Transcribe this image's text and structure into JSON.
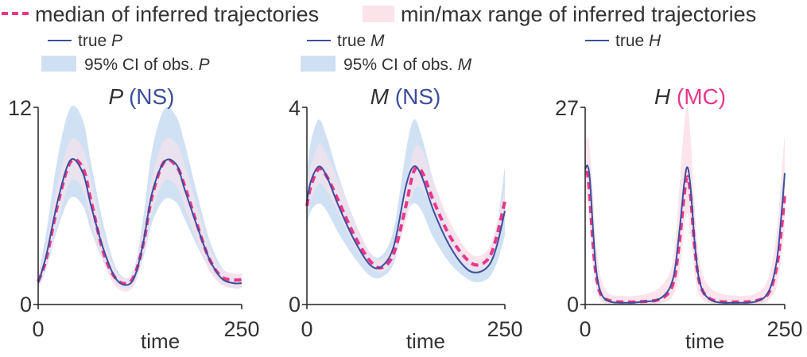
{
  "legend_top": {
    "median_label": "median of inferred trajectories",
    "range_label": "min/max range of inferred trajectories"
  },
  "colors": {
    "true_line": "#3d4f9c",
    "ci_fill": "#cfe0f3",
    "range_fill": "#fbe3ea",
    "median_line": "#e8378a",
    "ns_label": "#3d4f9c",
    "mc_label": "#e8378a",
    "axis": "#222222"
  },
  "chart_data": [
    {
      "type": "line",
      "id": "P",
      "title_var": "P",
      "title_tag": "(NS)",
      "tag_color": "ns",
      "xlabel": "time",
      "xlim": [
        0,
        250
      ],
      "ylim": [
        0,
        12
      ],
      "x_ticks": [
        "0",
        "250"
      ],
      "y_ticks": [
        "0",
        "12"
      ],
      "legend": [
        "true ",
        "P",
        "95% CI of obs. ",
        "P"
      ],
      "series": {
        "true": {
          "x": [
            0,
            10,
            25,
            40,
            55,
            65,
            80,
            95,
            110,
            120,
            130,
            140,
            155,
            170,
            180,
            195,
            210,
            225,
            240,
            250
          ],
          "values": [
            1.3,
            3.0,
            6.5,
            8.8,
            8.0,
            6.0,
            3.4,
            1.6,
            1.2,
            1.9,
            4.0,
            6.8,
            8.7,
            8.5,
            7.0,
            4.8,
            2.8,
            1.6,
            1.3,
            1.3
          ]
        },
        "median": {
          "x": [
            0,
            10,
            25,
            40,
            55,
            65,
            80,
            95,
            110,
            120,
            130,
            140,
            155,
            170,
            180,
            195,
            210,
            225,
            240,
            250
          ],
          "values": [
            1.4,
            2.8,
            6.3,
            8.7,
            8.3,
            6.3,
            3.2,
            1.6,
            1.3,
            2.0,
            3.9,
            6.6,
            8.7,
            8.4,
            7.2,
            4.9,
            2.8,
            1.7,
            1.5,
            1.5
          ]
        },
        "ci": {
          "x": [
            0,
            10,
            25,
            40,
            55,
            65,
            80,
            95,
            110,
            120,
            130,
            140,
            155,
            170,
            180,
            195,
            210,
            225,
            240,
            250
          ],
          "lower": [
            1.0,
            2.2,
            4.8,
            6.5,
            6.0,
            4.5,
            2.6,
            1.3,
            1.0,
            1.5,
            3.0,
            5.0,
            6.4,
            6.2,
            5.2,
            3.6,
            2.2,
            1.3,
            1.0,
            1.0
          ],
          "upper": [
            1.7,
            4.4,
            9.2,
            12.0,
            11.2,
            8.6,
            4.9,
            2.3,
            1.6,
            2.6,
            5.6,
            9.4,
            11.9,
            11.4,
            9.8,
            6.8,
            4.0,
            2.3,
            1.7,
            1.7
          ]
        },
        "range": {
          "x": [
            0,
            10,
            25,
            40,
            55,
            65,
            80,
            95,
            110,
            120,
            130,
            140,
            155,
            170,
            180,
            195,
            210,
            225,
            240,
            250
          ],
          "lower": [
            0.9,
            2.3,
            5.2,
            7.5,
            7.0,
            5.0,
            2.6,
            1.1,
            0.8,
            1.4,
            3.2,
            5.6,
            7.5,
            7.2,
            5.9,
            3.9,
            2.1,
            1.2,
            1.0,
            1.0
          ],
          "upper": [
            1.8,
            3.6,
            7.6,
            10.0,
            9.5,
            7.6,
            4.2,
            2.1,
            1.6,
            2.6,
            4.8,
            7.8,
            10.0,
            9.8,
            8.5,
            6.0,
            3.5,
            2.2,
            1.9,
            1.9
          ]
        }
      }
    },
    {
      "type": "line",
      "id": "M",
      "title_var": "M",
      "title_tag": "(NS)",
      "tag_color": "ns",
      "xlabel": "time",
      "xlim": [
        0,
        250
      ],
      "ylim": [
        0,
        4
      ],
      "x_ticks": [
        "0",
        "250"
      ],
      "y_ticks": [
        "0",
        "4"
      ],
      "legend": [
        "true ",
        "M",
        "95% CI of obs. ",
        "M"
      ],
      "series": {
        "true": {
          "x": [
            0,
            5,
            15,
            25,
            40,
            60,
            80,
            95,
            110,
            125,
            135,
            145,
            160,
            180,
            200,
            215,
            230,
            240,
            250
          ],
          "values": [
            2.1,
            2.5,
            2.8,
            2.6,
            2.0,
            1.3,
            0.8,
            0.78,
            1.2,
            2.4,
            2.8,
            2.6,
            1.9,
            1.2,
            0.75,
            0.65,
            0.8,
            1.2,
            1.9
          ]
        },
        "median": {
          "x": [
            0,
            5,
            15,
            25,
            40,
            60,
            80,
            95,
            110,
            125,
            135,
            145,
            160,
            180,
            200,
            215,
            230,
            240,
            250
          ],
          "values": [
            2.0,
            2.4,
            2.75,
            2.6,
            2.1,
            1.4,
            0.88,
            0.75,
            1.05,
            2.0,
            2.7,
            2.7,
            2.1,
            1.4,
            0.95,
            0.8,
            0.95,
            1.4,
            2.1
          ]
        },
        "ci": {
          "x": [
            0,
            5,
            15,
            25,
            40,
            60,
            80,
            95,
            110,
            125,
            135,
            145,
            160,
            180,
            200,
            215,
            230,
            240,
            250
          ],
          "lower": [
            1.6,
            1.9,
            2.05,
            1.9,
            1.45,
            0.95,
            0.58,
            0.56,
            0.85,
            1.8,
            2.05,
            1.9,
            1.35,
            0.85,
            0.55,
            0.45,
            0.55,
            0.85,
            1.4
          ],
          "upper": [
            2.7,
            3.3,
            3.75,
            3.4,
            2.6,
            1.7,
            1.05,
            1.0,
            1.55,
            3.1,
            3.75,
            3.4,
            2.5,
            1.55,
            1.0,
            0.85,
            1.05,
            1.6,
            2.8
          ]
        },
        "range": {
          "x": [
            0,
            5,
            15,
            25,
            40,
            60,
            80,
            95,
            110,
            125,
            135,
            145,
            160,
            180,
            200,
            215,
            230,
            240,
            250
          ],
          "lower": [
            1.8,
            2.1,
            2.45,
            2.3,
            1.85,
            1.2,
            0.75,
            0.66,
            0.92,
            1.7,
            2.3,
            2.35,
            1.85,
            1.2,
            0.8,
            0.68,
            0.8,
            1.2,
            1.8
          ],
          "upper": [
            2.4,
            2.8,
            3.25,
            3.05,
            2.5,
            1.7,
            1.05,
            0.92,
            1.3,
            2.4,
            3.15,
            3.15,
            2.5,
            1.7,
            1.15,
            0.98,
            1.15,
            1.65,
            2.4
          ]
        }
      }
    },
    {
      "type": "line",
      "id": "H",
      "title_var": "H",
      "title_tag": "(MC)",
      "tag_color": "mc",
      "xlabel": "time",
      "xlim": [
        0,
        250
      ],
      "ylim": [
        0,
        27
      ],
      "x_ticks": [
        "0",
        "250"
      ],
      "y_ticks": [
        "0",
        "27"
      ],
      "legend": [
        "true ",
        "H",
        "",
        ""
      ],
      "series": {
        "true": {
          "x": [
            0,
            3,
            6,
            10,
            14,
            20,
            30,
            45,
            70,
            95,
            110,
            118,
            124,
            128,
            132,
            138,
            145,
            160,
            190,
            215,
            230,
            240,
            246,
            250
          ],
          "values": [
            18.5,
            19.0,
            17.0,
            10.0,
            4.5,
            1.5,
            0.45,
            0.25,
            0.35,
            0.9,
            3.5,
            10.0,
            16.5,
            18.8,
            16.0,
            7.5,
            2.5,
            0.5,
            0.25,
            0.45,
            1.8,
            6.0,
            12.5,
            18.0
          ]
        },
        "median": {
          "x": [
            0,
            3,
            6,
            10,
            14,
            20,
            30,
            45,
            70,
            95,
            110,
            118,
            124,
            128,
            132,
            138,
            145,
            160,
            190,
            215,
            230,
            240,
            246,
            250
          ],
          "values": [
            18.0,
            17.8,
            14.5,
            8.0,
            3.8,
            1.3,
            0.55,
            0.35,
            0.4,
            0.8,
            2.8,
            8.5,
            15.0,
            17.5,
            15.0,
            7.0,
            2.4,
            0.6,
            0.35,
            0.55,
            1.6,
            5.2,
            10.5,
            15.0
          ]
        },
        "range": {
          "x": [
            0,
            3,
            6,
            10,
            14,
            20,
            30,
            45,
            70,
            95,
            110,
            118,
            124,
            128,
            132,
            138,
            145,
            160,
            190,
            215,
            230,
            240,
            246,
            250
          ],
          "lower": [
            15.5,
            14.0,
            10.5,
            5.5,
            2.2,
            0.5,
            0.05,
            0.0,
            0.0,
            0.2,
            1.2,
            4.5,
            10.0,
            12.5,
            9.5,
            3.5,
            1.0,
            0.1,
            0.0,
            0.1,
            0.6,
            2.5,
            6.5,
            10.5
          ],
          "upper": [
            22.0,
            23.0,
            21.0,
            15.0,
            8.0,
            3.5,
            1.5,
            1.2,
            1.3,
            2.5,
            6.0,
            16.0,
            24.5,
            27.0,
            23.0,
            12.0,
            5.0,
            2.0,
            1.2,
            1.6,
            3.8,
            10.0,
            18.0,
            23.5
          ]
        }
      }
    }
  ]
}
